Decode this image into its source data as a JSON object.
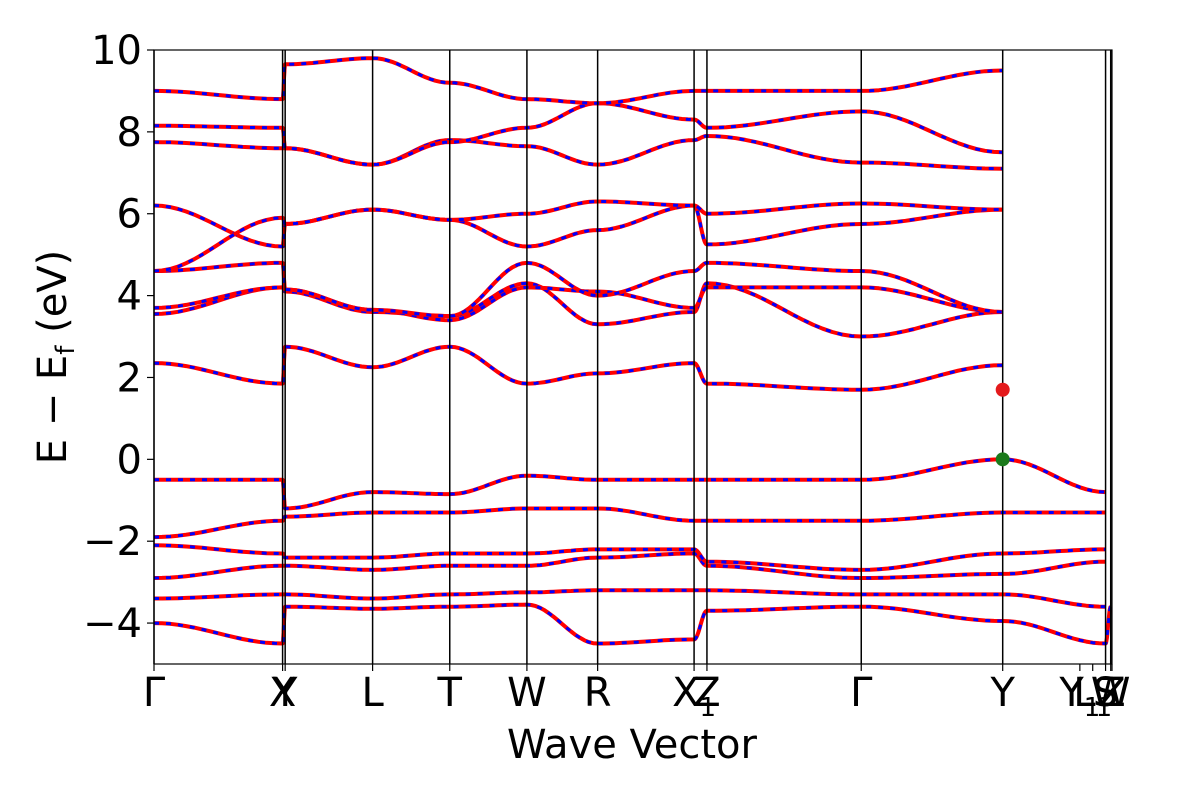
{
  "chart_data": {
    "type": "line",
    "title": "",
    "xlabel": "Wave Vector",
    "ylabel": "E − E",
    "ylabel_sub": "f",
    "ylabel_unit": " (eV)",
    "ylim": [
      -5,
      10
    ],
    "yticks": [
      -4,
      -2,
      0,
      2,
      4,
      6,
      8,
      10
    ],
    "ytick_labels": [
      "−4",
      "−2",
      "0",
      "2",
      "4",
      "6",
      "8",
      "10"
    ],
    "xlim": [
      0,
      7.45
    ],
    "kpath": [
      {
        "x": 0.0,
        "label": "Γ",
        "sub": ""
      },
      {
        "x": 1.0,
        "label": "X",
        "sub": ""
      },
      {
        "x": 1.02,
        "label": "Y",
        "sub": ""
      },
      {
        "x": 1.7,
        "label": "L",
        "sub": ""
      },
      {
        "x": 2.3,
        "label": "T",
        "sub": ""
      },
      {
        "x": 2.9,
        "label": "W",
        "sub": ""
      },
      {
        "x": 3.45,
        "label": "R",
        "sub": ""
      },
      {
        "x": 4.2,
        "label": "X",
        "sub": "1"
      },
      {
        "x": 4.3,
        "label": "Z",
        "sub": ""
      },
      {
        "x": 5.5,
        "label": "Γ",
        "sub": ""
      },
      {
        "x": 6.6,
        "label": "Y",
        "sub": ""
      },
      {
        "x": 7.4,
        "label": "S",
        "sub": ""
      },
      {
        "x": 7.44,
        "label": "W",
        "sub": ""
      },
      {
        "x": 7.2,
        "label": "Y",
        "sub": "1"
      },
      {
        "x": 7.3,
        "label": "L",
        "sub": "1"
      },
      {
        "x": 7.45,
        "label": "Z",
        "sub": ""
      }
    ],
    "vlines": [
      0,
      1.0,
      1.02,
      1.7,
      2.3,
      2.9,
      3.45,
      4.2,
      4.3,
      5.5,
      6.6,
      7.4,
      7.44
    ],
    "colors": {
      "band_red": "#ff0000",
      "band_blue": "#0000ff",
      "cbm": "#e41a1c",
      "vbm": "#1b7a1b"
    },
    "cbm": {
      "x": 6.6,
      "y": 1.7
    },
    "vbm": {
      "x": 6.6,
      "y": 0.0
    },
    "bands_valence_approx": [
      {
        "name": "",
        "values": [
          -4.0,
          -4.5,
          -3.6,
          -3.65,
          -3.6,
          -3.55,
          -4.5,
          -4.4,
          -3.7,
          -3.6,
          -3.95,
          -4.5,
          -3.6
        ]
      },
      {
        "name": "",
        "values": [
          -3.4,
          -3.3,
          -3.3,
          -3.4,
          -3.3,
          -3.25,
          -3.2,
          -3.2,
          -3.2,
          -3.3,
          -3.3,
          -3.6
        ]
      },
      {
        "name": "",
        "values": [
          -2.9,
          -2.6,
          -2.6,
          -2.7,
          -2.6,
          -2.6,
          -2.4,
          -2.3,
          -2.6,
          -2.9,
          -2.8,
          -2.5
        ]
      },
      {
        "name": "",
        "values": [
          -2.1,
          -2.3,
          -2.4,
          -2.4,
          -2.3,
          -2.3,
          -2.2,
          -2.2,
          -2.5,
          -2.7,
          -2.3,
          -2.2
        ]
      },
      {
        "name": "",
        "values": [
          -1.9,
          -1.5,
          -1.4,
          -1.3,
          -1.3,
          -1.2,
          -1.2,
          -1.5,
          -1.5,
          -1.5,
          -1.3,
          -1.3
        ]
      },
      {
        "name": "",
        "values": [
          -0.5,
          -0.5,
          -1.2,
          -0.8,
          -0.85,
          -0.4,
          -0.5,
          -0.5,
          -0.5,
          -0.5,
          0.0,
          -0.8
        ]
      }
    ],
    "bands_conduction_approx": [
      {
        "name": "",
        "values": [
          2.35,
          1.85,
          2.75,
          2.25,
          2.75,
          1.85,
          2.1,
          2.35,
          1.85,
          1.7,
          2.3
        ]
      },
      {
        "name": "",
        "values": [
          3.55,
          4.2,
          4.1,
          3.6,
          3.5,
          4.3,
          3.3,
          3.6,
          4.3,
          3.0,
          3.6
        ]
      },
      {
        "name": "",
        "values": [
          3.7,
          4.2,
          4.15,
          3.65,
          3.4,
          4.2,
          4.1,
          3.7,
          4.2,
          4.2,
          3.6
        ]
      },
      {
        "name": "",
        "values": [
          4.6,
          4.8,
          4.15,
          3.65,
          3.5,
          4.8,
          4.0,
          4.6,
          4.8,
          4.6,
          3.6
        ]
      },
      {
        "name": "",
        "values": [
          6.2,
          5.2,
          5.75,
          6.1,
          5.85,
          5.2,
          5.6,
          6.2,
          5.25,
          5.75,
          6.1
        ]
      },
      {
        "name": "",
        "values": [
          4.6,
          5.9,
          5.75,
          6.1,
          5.85,
          6.0,
          6.3,
          6.2,
          6.0,
          6.25,
          6.1
        ]
      },
      {
        "name": "",
        "values": [
          7.75,
          7.6,
          7.6,
          7.2,
          7.8,
          7.65,
          7.2,
          7.8,
          7.9,
          7.25,
          7.1
        ]
      },
      {
        "name": "",
        "values": [
          8.15,
          8.1,
          7.6,
          7.2,
          7.75,
          8.1,
          8.7,
          8.3,
          8.1,
          8.5,
          7.5
        ]
      },
      {
        "name": "",
        "values": [
          9.0,
          8.8,
          9.65,
          9.8,
          9.2,
          8.8,
          8.7,
          9.0,
          9.0,
          9.0,
          9.5
        ]
      }
    ]
  }
}
